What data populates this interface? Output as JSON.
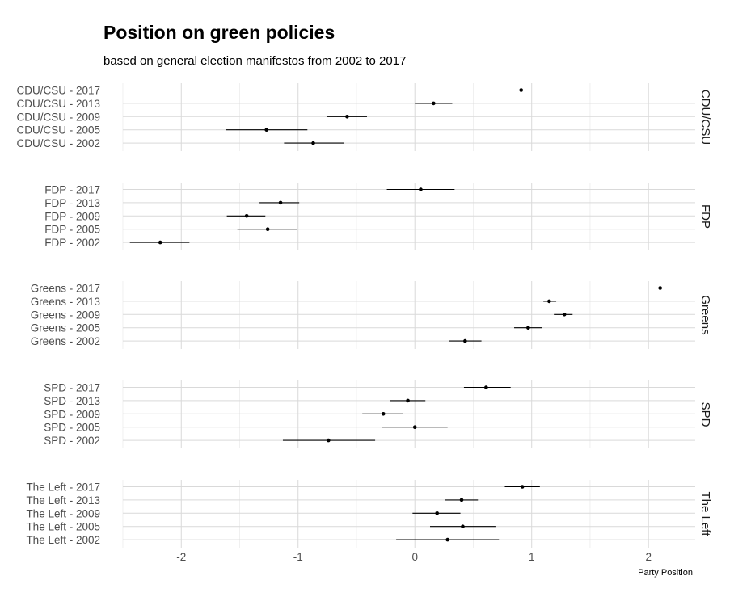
{
  "chart_data": {
    "type": "scatter",
    "subtype": "point-range",
    "title": "Position on green policies",
    "subtitle": "based on general election manifestos from 2002 to 2017",
    "xlabel": "Party Position",
    "ylabel": "",
    "xlim": [
      -2.5,
      2.4
    ],
    "xticks": [
      -2,
      -1,
      0,
      1,
      2
    ],
    "xtick_labels": [
      "-2",
      "-1",
      "0",
      "1",
      "2"
    ],
    "grid": true,
    "legend": "none",
    "colors": {
      "point": "#000000",
      "grid": "#d9d9d9",
      "text": "#4d4d4d"
    },
    "facets": [
      {
        "name": "CDU/CSU",
        "rows": [
          {
            "label": "CDU/CSU - 2017",
            "value": 0.91,
            "low": 0.69,
            "high": 1.14
          },
          {
            "label": "CDU/CSU - 2013",
            "value": 0.16,
            "low": 0.0,
            "high": 0.32
          },
          {
            "label": "CDU/CSU - 2009",
            "value": -0.58,
            "low": -0.75,
            "high": -0.41
          },
          {
            "label": "CDU/CSU - 2005",
            "value": -1.27,
            "low": -1.62,
            "high": -0.92
          },
          {
            "label": "CDU/CSU - 2002",
            "value": -0.87,
            "low": -1.12,
            "high": -0.61
          }
        ]
      },
      {
        "name": "FDP",
        "rows": [
          {
            "label": "FDP - 2017",
            "value": 0.05,
            "low": -0.24,
            "high": 0.34
          },
          {
            "label": "FDP - 2013",
            "value": -1.15,
            "low": -1.33,
            "high": -0.99
          },
          {
            "label": "FDP - 2009",
            "value": -1.44,
            "low": -1.61,
            "high": -1.28
          },
          {
            "label": "FDP - 2005",
            "value": -1.26,
            "low": -1.52,
            "high": -1.01
          },
          {
            "label": "FDP - 2002",
            "value": -2.18,
            "low": -2.44,
            "high": -1.93
          }
        ]
      },
      {
        "name": "Greens",
        "rows": [
          {
            "label": "Greens - 2017",
            "value": 2.1,
            "low": 2.03,
            "high": 2.17
          },
          {
            "label": "Greens - 2013",
            "value": 1.15,
            "low": 1.1,
            "high": 1.21
          },
          {
            "label": "Greens - 2009",
            "value": 1.28,
            "low": 1.19,
            "high": 1.35
          },
          {
            "label": "Greens - 2005",
            "value": 0.97,
            "low": 0.85,
            "high": 1.09
          },
          {
            "label": "Greens - 2002",
            "value": 0.43,
            "low": 0.29,
            "high": 0.57
          }
        ]
      },
      {
        "name": "SPD",
        "rows": [
          {
            "label": "SPD - 2017",
            "value": 0.61,
            "low": 0.42,
            "high": 0.82
          },
          {
            "label": "SPD - 2013",
            "value": -0.06,
            "low": -0.21,
            "high": 0.09
          },
          {
            "label": "SPD - 2009",
            "value": -0.27,
            "low": -0.45,
            "high": -0.1
          },
          {
            "label": "SPD - 2005",
            "value": 0.0,
            "low": -0.28,
            "high": 0.28
          },
          {
            "label": "SPD - 2002",
            "value": -0.74,
            "low": -1.13,
            "high": -0.34
          }
        ]
      },
      {
        "name": "The Left",
        "rows": [
          {
            "label": "The Left - 2017",
            "value": 0.92,
            "low": 0.77,
            "high": 1.07
          },
          {
            "label": "The Left - 2013",
            "value": 0.4,
            "low": 0.26,
            "high": 0.54
          },
          {
            "label": "The Left - 2009",
            "value": 0.19,
            "low": -0.02,
            "high": 0.39
          },
          {
            "label": "The Left - 2005",
            "value": 0.41,
            "low": 0.13,
            "high": 0.69
          },
          {
            "label": "The Left - 2002",
            "value": 0.28,
            "low": -0.16,
            "high": 0.72
          }
        ]
      }
    ]
  }
}
